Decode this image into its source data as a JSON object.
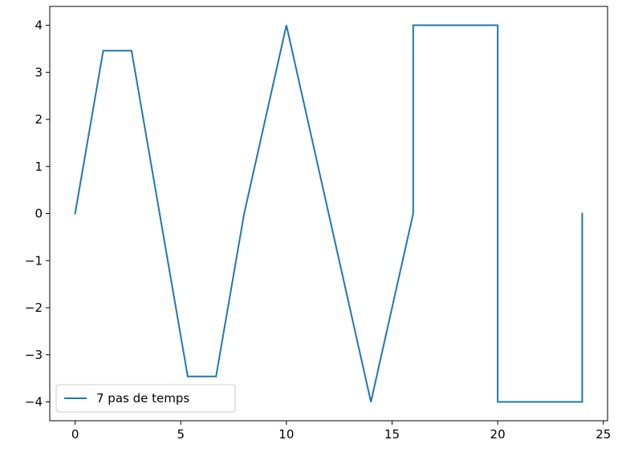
{
  "chart_data": {
    "type": "line",
    "title": "",
    "xlabel": "",
    "ylabel": "",
    "xlim": [
      -1.2,
      25.2
    ],
    "ylim": [
      -4.4,
      4.4
    ],
    "xticks": [
      0,
      5,
      10,
      15,
      20,
      25
    ],
    "xtick_labels": [
      "0",
      "5",
      "10",
      "15",
      "20",
      "25"
    ],
    "yticks": [
      -4,
      -3,
      -2,
      -1,
      0,
      1,
      2,
      3,
      4
    ],
    "ytick_labels": [
      "−4",
      "−3",
      "−2",
      "−1",
      "0",
      "1",
      "2",
      "3",
      "4"
    ],
    "grid": false,
    "legend": {
      "position": "lower-left"
    },
    "series": [
      {
        "name": "7 pas de temps",
        "color": "#1f77b4",
        "x": [
          0,
          1.33,
          2.67,
          5.33,
          6.67,
          8,
          10,
          14,
          16,
          16,
          20,
          20,
          24,
          24
        ],
        "y": [
          0,
          3.46,
          3.46,
          -3.46,
          -3.46,
          0,
          4,
          -4,
          0,
          4,
          4,
          -4,
          -4,
          0
        ]
      }
    ]
  }
}
